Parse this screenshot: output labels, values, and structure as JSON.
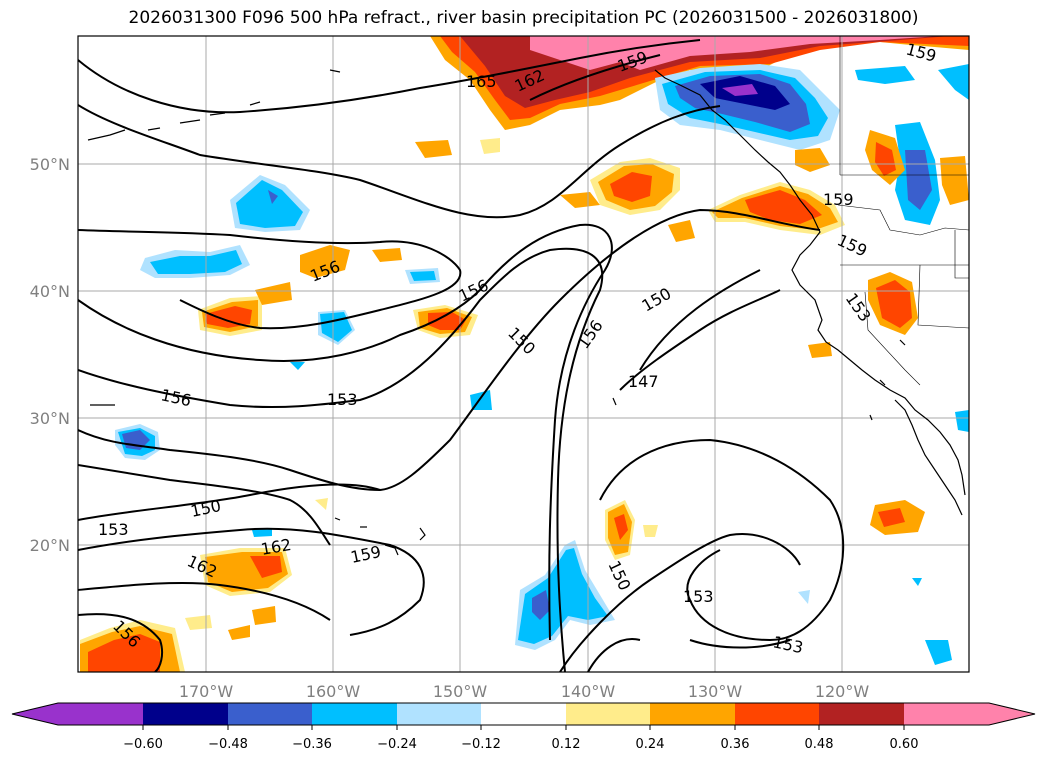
{
  "title": "2026031300 F096 500 hPa refract., river basin precipitation PC (2026031500 - 2026031800)",
  "lat_labels": [
    "50°N",
    "40°N",
    "30°N",
    "20°N"
  ],
  "lon_labels": [
    "170°W",
    "160°W",
    "150°W",
    "140°W",
    "130°W",
    "120°W"
  ],
  "contour_labels": [
    "165",
    "162",
    "159",
    "159",
    "159",
    "159",
    "153",
    "156",
    "156",
    "150",
    "150",
    "156",
    "147",
    "156",
    "153",
    "150",
    "153",
    "162",
    "162",
    "159",
    "150",
    "153",
    "153",
    "156"
  ],
  "colorbar": {
    "ticks": [
      "−0.60",
      "−0.48",
      "−0.36",
      "−0.24",
      "−0.12",
      "0.12",
      "0.24",
      "0.36",
      "0.48",
      "0.60"
    ],
    "colors": [
      "#9932cc",
      "#00008b",
      "#3a5fcd",
      "#00bfff",
      "#b0e2ff",
      "#ffffff",
      "#ffec8b",
      "#ffa500",
      "#ff4500",
      "#b22222",
      "#ff82ab"
    ]
  }
}
